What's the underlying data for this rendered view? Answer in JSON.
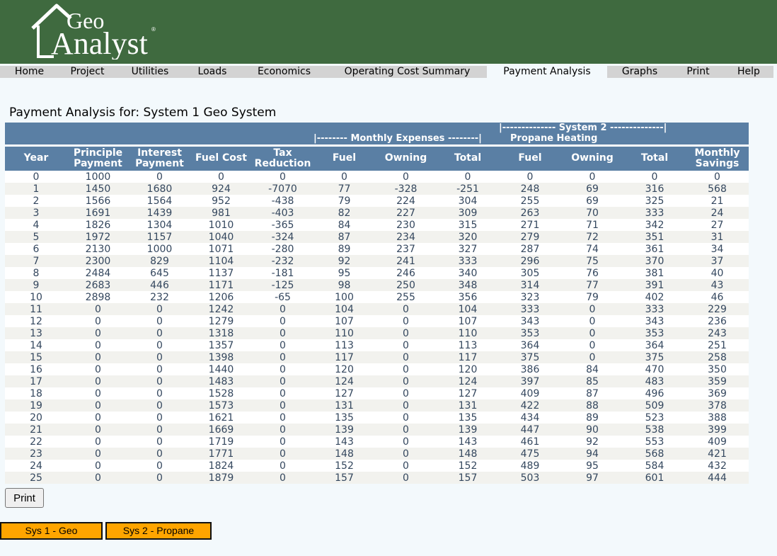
{
  "logo": {
    "line1": "Geo",
    "line2": "Analyst",
    "mark": "®"
  },
  "nav": [
    {
      "label": "Home",
      "active": false
    },
    {
      "label": "Project",
      "active": false
    },
    {
      "label": "Utilities",
      "active": false
    },
    {
      "label": "Loads",
      "active": false
    },
    {
      "label": "Economics",
      "active": false
    },
    {
      "label": "Operating Cost Summary",
      "active": false
    },
    {
      "label": "Payment Analysis",
      "active": true
    },
    {
      "label": "Graphs",
      "active": false
    },
    {
      "label": "Print",
      "active": false
    },
    {
      "label": "Help",
      "active": false
    }
  ],
  "page": {
    "title": "Payment Analysis for: System 1 Geo System"
  },
  "table": {
    "group_monthly": "|-------- Monthly Expenses --------|",
    "group_system2": "|-------------- System 2 --------------|",
    "group_propane": "Propane Heating",
    "columns": [
      "Year",
      "Principle Payment",
      "Interest Payment",
      "Fuel Cost",
      "Tax Reduction",
      "Fuel",
      "Owning",
      "Total",
      "Fuel",
      "Owning",
      "Total",
      "Monthly Savings"
    ],
    "rows": [
      [
        "0",
        "1000",
        "0",
        "0",
        "0",
        "0",
        "0",
        "0",
        "0",
        "0",
        "0",
        "0"
      ],
      [
        "1",
        "1450",
        "1680",
        "924",
        "-7070",
        "77",
        "-328",
        "-251",
        "248",
        "69",
        "316",
        "568"
      ],
      [
        "2",
        "1566",
        "1564",
        "952",
        "-438",
        "79",
        "224",
        "304",
        "255",
        "69",
        "325",
        "21"
      ],
      [
        "3",
        "1691",
        "1439",
        "981",
        "-403",
        "82",
        "227",
        "309",
        "263",
        "70",
        "333",
        "24"
      ],
      [
        "4",
        "1826",
        "1304",
        "1010",
        "-365",
        "84",
        "230",
        "315",
        "271",
        "71",
        "342",
        "27"
      ],
      [
        "5",
        "1972",
        "1157",
        "1040",
        "-324",
        "87",
        "234",
        "320",
        "279",
        "72",
        "351",
        "31"
      ],
      [
        "6",
        "2130",
        "1000",
        "1071",
        "-280",
        "89",
        "237",
        "327",
        "287",
        "74",
        "361",
        "34"
      ],
      [
        "7",
        "2300",
        "829",
        "1104",
        "-232",
        "92",
        "241",
        "333",
        "296",
        "75",
        "370",
        "37"
      ],
      [
        "8",
        "2484",
        "645",
        "1137",
        "-181",
        "95",
        "246",
        "340",
        "305",
        "76",
        "381",
        "40"
      ],
      [
        "9",
        "2683",
        "446",
        "1171",
        "-125",
        "98",
        "250",
        "348",
        "314",
        "77",
        "391",
        "43"
      ],
      [
        "10",
        "2898",
        "232",
        "1206",
        "-65",
        "100",
        "255",
        "356",
        "323",
        "79",
        "402",
        "46"
      ],
      [
        "11",
        "0",
        "0",
        "1242",
        "0",
        "104",
        "0",
        "104",
        "333",
        "0",
        "333",
        "229"
      ],
      [
        "12",
        "0",
        "0",
        "1279",
        "0",
        "107",
        "0",
        "107",
        "343",
        "0",
        "343",
        "236"
      ],
      [
        "13",
        "0",
        "0",
        "1318",
        "0",
        "110",
        "0",
        "110",
        "353",
        "0",
        "353",
        "243"
      ],
      [
        "14",
        "0",
        "0",
        "1357",
        "0",
        "113",
        "0",
        "113",
        "364",
        "0",
        "364",
        "251"
      ],
      [
        "15",
        "0",
        "0",
        "1398",
        "0",
        "117",
        "0",
        "117",
        "375",
        "0",
        "375",
        "258"
      ],
      [
        "16",
        "0",
        "0",
        "1440",
        "0",
        "120",
        "0",
        "120",
        "386",
        "84",
        "470",
        "350"
      ],
      [
        "17",
        "0",
        "0",
        "1483",
        "0",
        "124",
        "0",
        "124",
        "397",
        "85",
        "483",
        "359"
      ],
      [
        "18",
        "0",
        "0",
        "1528",
        "0",
        "127",
        "0",
        "127",
        "409",
        "87",
        "496",
        "369"
      ],
      [
        "19",
        "0",
        "0",
        "1573",
        "0",
        "131",
        "0",
        "131",
        "422",
        "88",
        "509",
        "378"
      ],
      [
        "20",
        "0",
        "0",
        "1621",
        "0",
        "135",
        "0",
        "135",
        "434",
        "89",
        "523",
        "388"
      ],
      [
        "21",
        "0",
        "0",
        "1669",
        "0",
        "139",
        "0",
        "139",
        "447",
        "90",
        "538",
        "399"
      ],
      [
        "22",
        "0",
        "0",
        "1719",
        "0",
        "143",
        "0",
        "143",
        "461",
        "92",
        "553",
        "409"
      ],
      [
        "23",
        "0",
        "0",
        "1771",
        "0",
        "148",
        "0",
        "148",
        "475",
        "94",
        "568",
        "421"
      ],
      [
        "24",
        "0",
        "0",
        "1824",
        "0",
        "152",
        "0",
        "152",
        "489",
        "95",
        "584",
        "432"
      ],
      [
        "25",
        "0",
        "0",
        "1879",
        "0",
        "157",
        "0",
        "157",
        "503",
        "97",
        "601",
        "444"
      ]
    ]
  },
  "buttons": {
    "print": "Print",
    "sys1": "Sys 1 - Geo",
    "sys2": "Sys 2 - Propane"
  },
  "colors": {
    "header_green": "#3f6a3f",
    "table_header": "#5a7fa4",
    "sys_button": "#ffa500"
  }
}
